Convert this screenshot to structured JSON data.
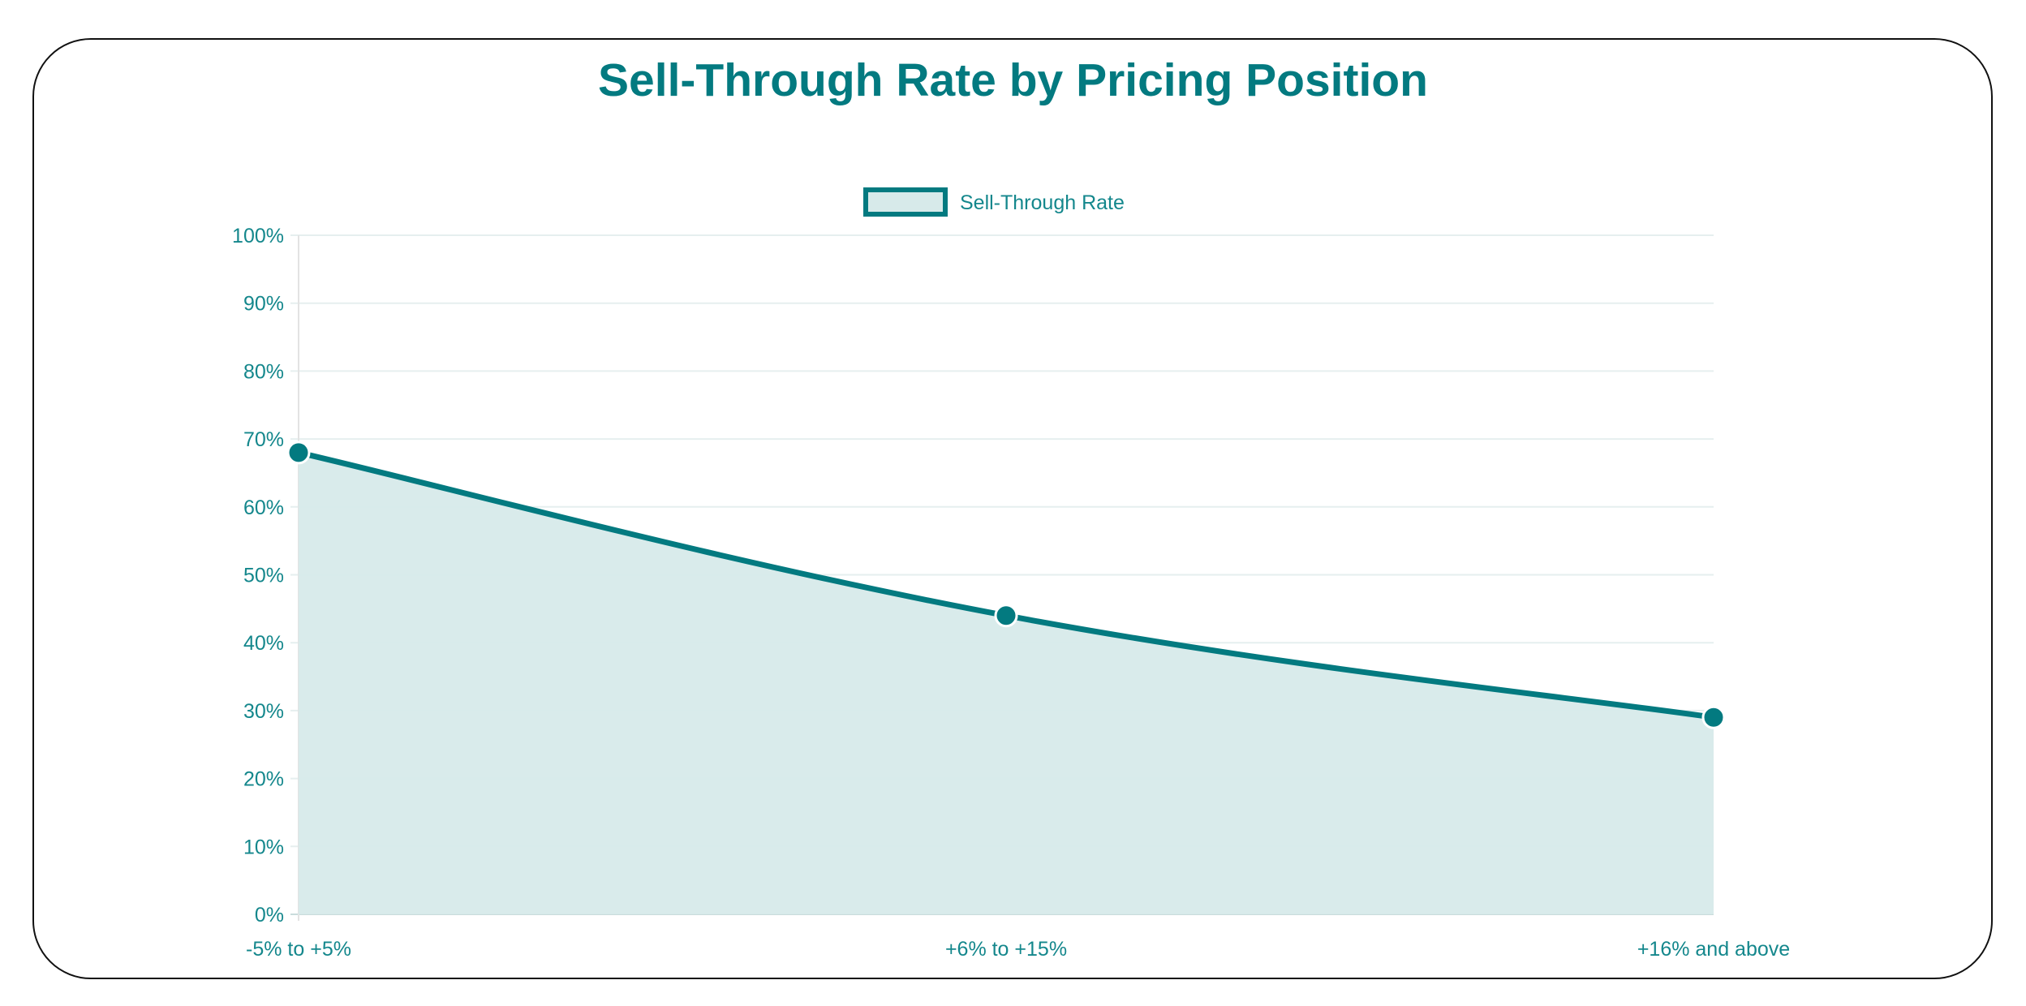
{
  "chart_data": {
    "type": "area",
    "title": "Sell-Through Rate by Pricing Position",
    "categories": [
      "-5% to +5%",
      "+6% to +15%",
      "+16% and above"
    ],
    "series": [
      {
        "name": "Sell-Through Rate",
        "values": [
          68,
          44,
          29
        ]
      }
    ],
    "ylim": [
      0,
      100
    ],
    "yticks": [
      "0%",
      "10%",
      "20%",
      "30%",
      "40%",
      "50%",
      "60%",
      "70%",
      "80%",
      "90%",
      "100%"
    ],
    "grid": true,
    "legend": "top",
    "colors": {
      "line": "#037a80",
      "fill": "#d7eaea",
      "text": "#14878c",
      "grid": "#e6efef"
    }
  }
}
